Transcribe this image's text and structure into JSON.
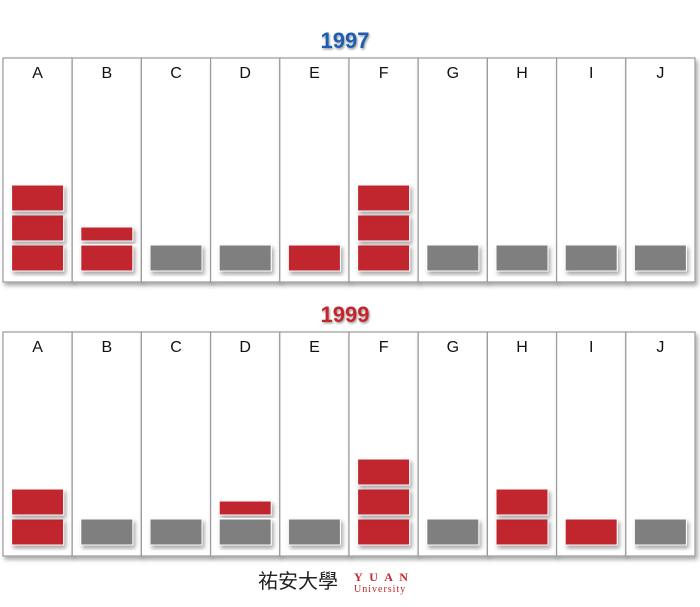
{
  "chart_data": [
    {
      "type": "block",
      "title": "1997",
      "title_color": "#1f5fb0",
      "categories": [
        "A",
        "B",
        "C",
        "D",
        "E",
        "F",
        "G",
        "H",
        "I",
        "J"
      ],
      "values": [
        3,
        1.5,
        0,
        0,
        1,
        3,
        0,
        0,
        0,
        0
      ],
      "color": "#c1272d",
      "zero_color": "#7f7f7f"
    },
    {
      "type": "block",
      "title": "1999",
      "title_color": "#c1272d",
      "categories": [
        "A",
        "B",
        "C",
        "D",
        "E",
        "F",
        "G",
        "H",
        "I",
        "J"
      ],
      "values": [
        2,
        0,
        0,
        0.5,
        0,
        3,
        0,
        2,
        1,
        0
      ],
      "color": "#c1272d",
      "zero_color": "#7f7f7f"
    }
  ],
  "footer": {
    "logo_cn": "祐安大學",
    "logo_en": "Y U A N",
    "logo_sub": "University"
  }
}
